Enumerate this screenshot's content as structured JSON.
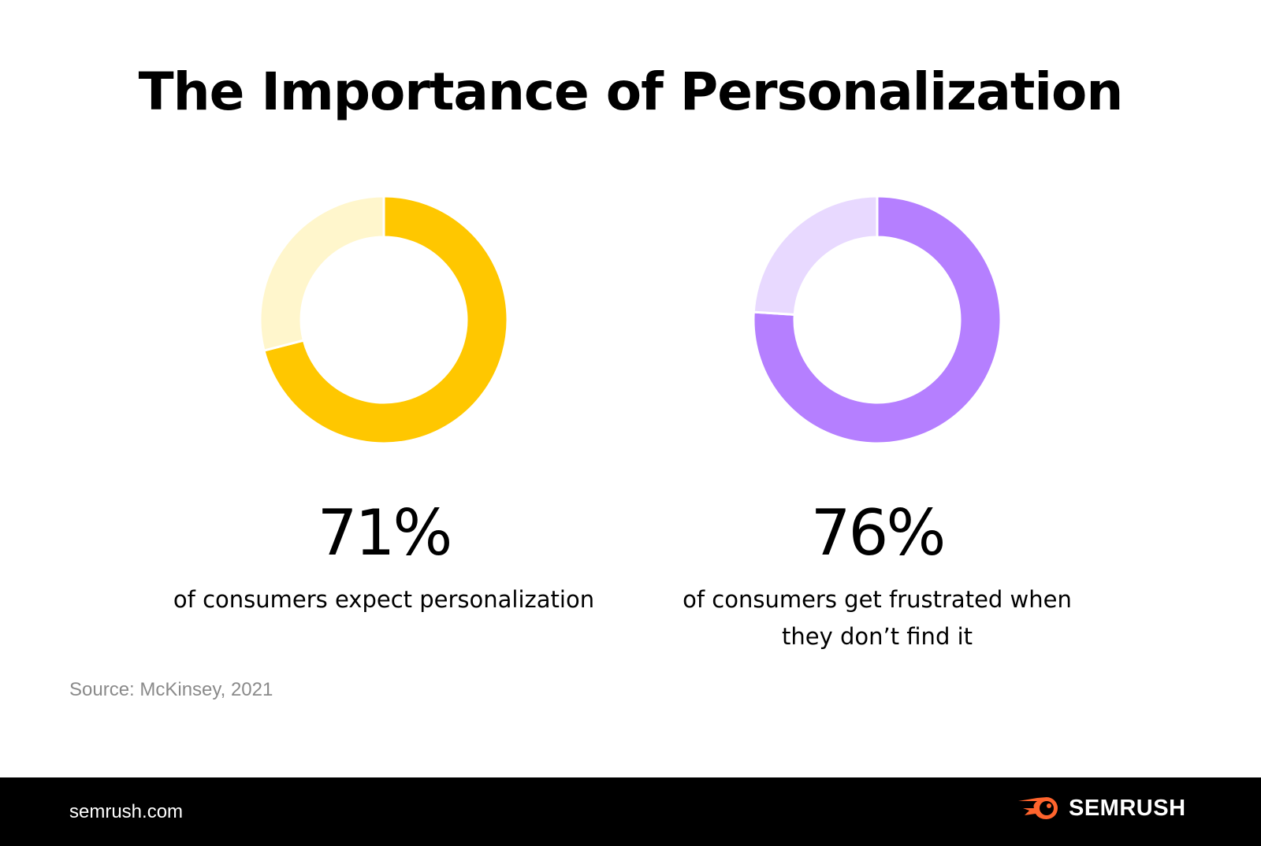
{
  "title": "The Importance of Personalization",
  "chart_data": [
    {
      "type": "pie",
      "variant": "donut",
      "values": [
        71,
        29
      ],
      "colors": [
        "#FFC700",
        "#FFF6CC"
      ],
      "label": "71%",
      "description": "of consumers expect personalization"
    },
    {
      "type": "pie",
      "variant": "donut",
      "values": [
        76,
        24
      ],
      "colors": [
        "#B57FFF",
        "#E8D9FF"
      ],
      "label": "76%",
      "description": "of consumers get frustrated when they don’t find it"
    }
  ],
  "source": "Source: McKinsey, 2021",
  "footer": {
    "site": "semrush.com",
    "logo_text": "SEMRUSH",
    "logo_color": "#FF642D"
  }
}
